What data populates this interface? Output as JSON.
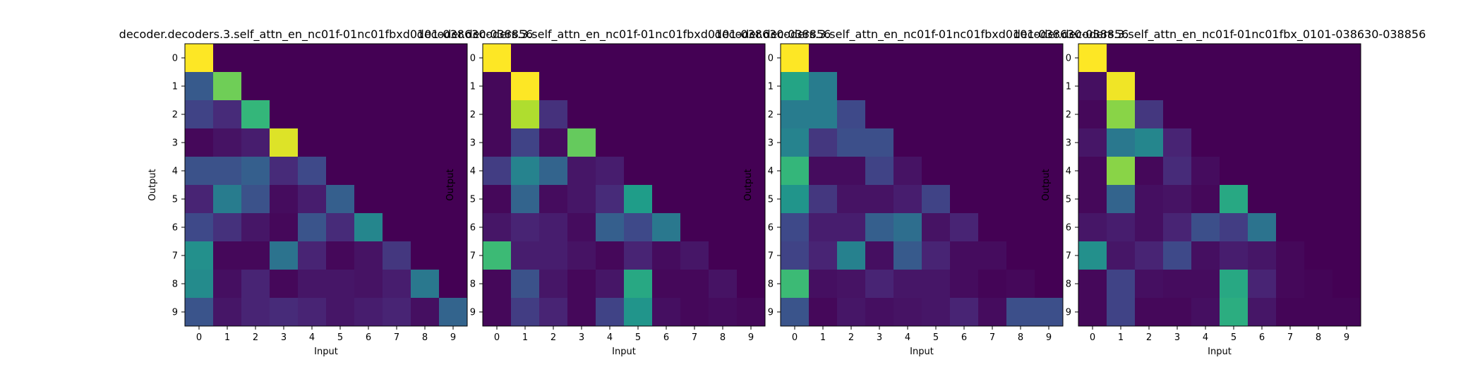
{
  "chart_data": [
    {
      "type": "heatmap",
      "title": "decoder.decoders.3.self_attn_en_nc01f-01nc01fbxd0101-038630-038856",
      "xlabel": "Input",
      "ylabel": "Output",
      "x_ticks": [
        "0",
        "1",
        "2",
        "3",
        "4",
        "5",
        "6",
        "7",
        "8",
        "9"
      ],
      "y_ticks": [
        "0",
        "1",
        "2",
        "3",
        "4",
        "5",
        "6",
        "7",
        "8",
        "9"
      ],
      "colormap": "viridis",
      "values": [
        [
          1.0,
          0,
          0,
          0,
          0,
          0,
          0,
          0,
          0,
          0
        ],
        [
          0.28,
          0.78,
          0,
          0,
          0,
          0,
          0,
          0,
          0,
          0
        ],
        [
          0.2,
          0.12,
          0.66,
          0,
          0,
          0,
          0,
          0,
          0,
          0
        ],
        [
          0.02,
          0.05,
          0.08,
          0.95,
          0,
          0,
          0,
          0,
          0,
          0
        ],
        [
          0.25,
          0.25,
          0.3,
          0.12,
          0.22,
          0,
          0,
          0,
          0,
          0
        ],
        [
          0.1,
          0.42,
          0.25,
          0.03,
          0.08,
          0.3,
          0,
          0,
          0,
          0
        ],
        [
          0.22,
          0.14,
          0.06,
          0.02,
          0.26,
          0.12,
          0.46,
          0,
          0,
          0
        ],
        [
          0.5,
          0.02,
          0.02,
          0.38,
          0.1,
          0.02,
          0.05,
          0.16,
          0,
          0
        ],
        [
          0.48,
          0.04,
          0.1,
          0.02,
          0.06,
          0.06,
          0.05,
          0.08,
          0.4,
          0
        ],
        [
          0.26,
          0.06,
          0.1,
          0.12,
          0.1,
          0.06,
          0.08,
          0.1,
          0.04,
          0.32
        ]
      ]
    },
    {
      "type": "heatmap",
      "title": "decoder.decoders.3.self_attn_en_nc01f-01nc01fbxd0101-038630-038856",
      "xlabel": "Input",
      "ylabel": "Output",
      "x_ticks": [
        "0",
        "1",
        "2",
        "3",
        "4",
        "5",
        "6",
        "7",
        "8",
        "9"
      ],
      "y_ticks": [
        "0",
        "1",
        "2",
        "3",
        "4",
        "5",
        "6",
        "7",
        "8",
        "9"
      ],
      "colormap": "viridis",
      "values": [
        [
          1.0,
          0,
          0,
          0,
          0,
          0,
          0,
          0,
          0,
          0
        ],
        [
          0.02,
          1.0,
          0,
          0,
          0,
          0,
          0,
          0,
          0,
          0
        ],
        [
          0.02,
          0.88,
          0.14,
          0,
          0,
          0,
          0,
          0,
          0,
          0
        ],
        [
          0.02,
          0.2,
          0.03,
          0.76,
          0,
          0,
          0,
          0,
          0,
          0
        ],
        [
          0.18,
          0.45,
          0.32,
          0.06,
          0.08,
          0,
          0,
          0,
          0,
          0
        ],
        [
          0.02,
          0.32,
          0.03,
          0.06,
          0.12,
          0.55,
          0,
          0,
          0,
          0
        ],
        [
          0.06,
          0.1,
          0.08,
          0.03,
          0.3,
          0.22,
          0.4,
          0,
          0,
          0
        ],
        [
          0.68,
          0.08,
          0.08,
          0.05,
          0.02,
          0.1,
          0.03,
          0.06,
          0,
          0
        ],
        [
          0.02,
          0.25,
          0.06,
          0.02,
          0.06,
          0.6,
          0.02,
          0.02,
          0.05,
          0
        ],
        [
          0.02,
          0.18,
          0.1,
          0.02,
          0.2,
          0.52,
          0.04,
          0.02,
          0.03,
          0.02
        ]
      ]
    },
    {
      "type": "heatmap",
      "title": "decoder.decoders.3.self_attn_en_nc01f-01nc01fbxd0101-038630-038856",
      "xlabel": "Input",
      "ylabel": "Output",
      "x_ticks": [
        "0",
        "1",
        "2",
        "3",
        "4",
        "5",
        "6",
        "7",
        "8",
        "9"
      ],
      "y_ticks": [
        "0",
        "1",
        "2",
        "3",
        "4",
        "5",
        "6",
        "7",
        "8",
        "9"
      ],
      "colormap": "viridis",
      "values": [
        [
          1.0,
          0,
          0,
          0,
          0,
          0,
          0,
          0,
          0,
          0
        ],
        [
          0.58,
          0.42,
          0,
          0,
          0,
          0,
          0,
          0,
          0,
          0
        ],
        [
          0.42,
          0.42,
          0.22,
          0,
          0,
          0,
          0,
          0,
          0,
          0
        ],
        [
          0.45,
          0.16,
          0.24,
          0.24,
          0,
          0,
          0,
          0,
          0,
          0
        ],
        [
          0.66,
          0.03,
          0.03,
          0.2,
          0.05,
          0,
          0,
          0,
          0,
          0
        ],
        [
          0.52,
          0.16,
          0.05,
          0.05,
          0.08,
          0.2,
          0,
          0,
          0,
          0
        ],
        [
          0.22,
          0.08,
          0.08,
          0.3,
          0.36,
          0.05,
          0.1,
          0,
          0,
          0
        ],
        [
          0.2,
          0.1,
          0.44,
          0.04,
          0.28,
          0.1,
          0.03,
          0.03,
          0,
          0
        ],
        [
          0.68,
          0.04,
          0.05,
          0.1,
          0.06,
          0.06,
          0.03,
          0.01,
          0.02,
          0
        ],
        [
          0.26,
          0.02,
          0.06,
          0.04,
          0.05,
          0.06,
          0.1,
          0.03,
          0.24,
          0.24
        ]
      ]
    },
    {
      "type": "heatmap",
      "title": "decoder.decoders.3.self_attn_en_nc01f-01nc01fbx_0101-038630-038856",
      "xlabel": "Input",
      "ylabel": "Output",
      "x_ticks": [
        "0",
        "1",
        "2",
        "3",
        "4",
        "5",
        "6",
        "7",
        "8",
        "9"
      ],
      "y_ticks": [
        "0",
        "1",
        "2",
        "3",
        "4",
        "5",
        "6",
        "7",
        "8",
        "9"
      ],
      "colormap": "viridis",
      "values": [
        [
          1.0,
          0,
          0,
          0,
          0,
          0,
          0,
          0,
          0,
          0
        ],
        [
          0.04,
          0.98,
          0,
          0,
          0,
          0,
          0,
          0,
          0,
          0
        ],
        [
          0.02,
          0.82,
          0.16,
          0,
          0,
          0,
          0,
          0,
          0,
          0
        ],
        [
          0.06,
          0.4,
          0.46,
          0.1,
          0,
          0,
          0,
          0,
          0,
          0
        ],
        [
          0.02,
          0.82,
          0.02,
          0.12,
          0.03,
          0,
          0,
          0,
          0,
          0
        ],
        [
          0.02,
          0.32,
          0.04,
          0.05,
          0.02,
          0.6,
          0,
          0,
          0,
          0
        ],
        [
          0.06,
          0.08,
          0.04,
          0.1,
          0.24,
          0.18,
          0.38,
          0,
          0,
          0
        ],
        [
          0.5,
          0.06,
          0.1,
          0.22,
          0.04,
          0.08,
          0.06,
          0.02,
          0,
          0
        ],
        [
          0.02,
          0.2,
          0.04,
          0.03,
          0.03,
          0.6,
          0.1,
          0.02,
          0.01,
          0
        ],
        [
          0.02,
          0.2,
          0.02,
          0.02,
          0.04,
          0.62,
          0.06,
          0.01,
          0.01,
          0.01
        ]
      ]
    }
  ]
}
